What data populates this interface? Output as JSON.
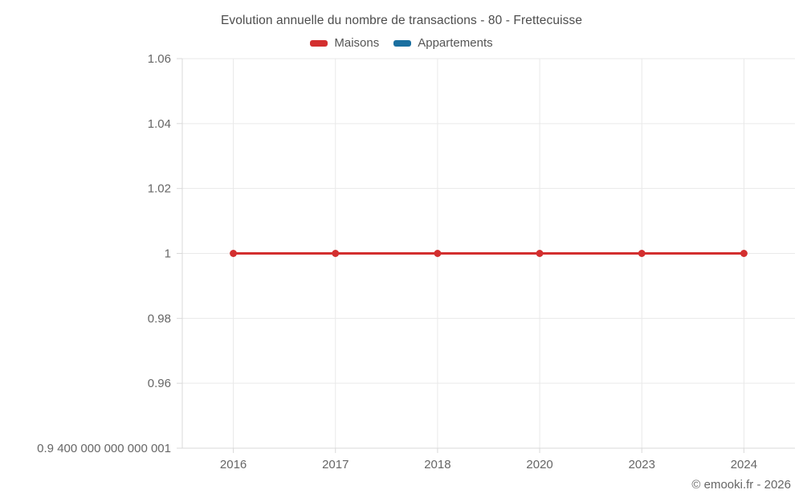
{
  "chart": {
    "title": "Evolution annuelle du nombre de transactions - 80 - Frettecuisse",
    "footer": "© emooki.fr - 2026"
  },
  "chart_data": {
    "type": "line",
    "title": "Evolution annuelle du nombre de transactions - 80 - Frettecuisse",
    "categories": [
      "2016",
      "2017",
      "2018",
      "2020",
      "2023",
      "2024"
    ],
    "series": [
      {
        "name": "Maisons",
        "color": "#d32f2f",
        "values": [
          1,
          1,
          1,
          1,
          1,
          1
        ]
      },
      {
        "name": "Appartements",
        "color": "#1a6fa0",
        "values": []
      }
    ],
    "xlabel": "",
    "ylabel": "",
    "ylim": [
      0.9400000000000001,
      1.06
    ],
    "y_tick_labels": [
      "1.06",
      "1.04",
      "1.02",
      "1",
      "0.98",
      "0.96",
      "0.9 400 000 000 000 001"
    ],
    "grid": true,
    "legend_position": "top",
    "colors": {
      "grid": "#e9e9e9",
      "axis": "#d9d9d9",
      "label": "#666666",
      "title": "#4d4d4d"
    },
    "footer": "© emooki.fr - 2026"
  }
}
